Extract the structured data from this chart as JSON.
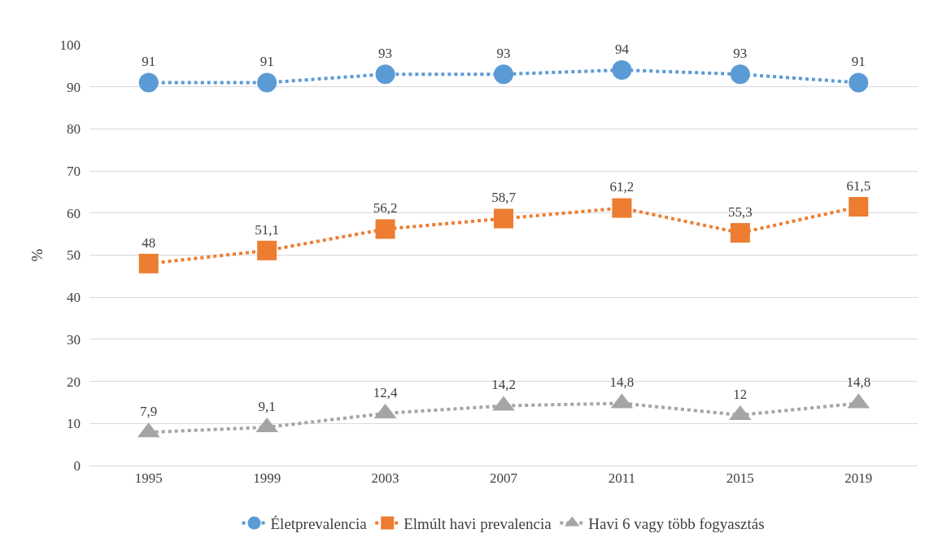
{
  "chart_data": {
    "type": "line",
    "ylabel": "%",
    "categories": [
      "1995",
      "1999",
      "2003",
      "2007",
      "2011",
      "2015",
      "2019"
    ],
    "series": [
      {
        "name": "Életprevalencia",
        "color": "#5b9bd5",
        "marker": "circle",
        "values": [
          91,
          91,
          93,
          93,
          94,
          93,
          91
        ],
        "value_labels": [
          "91",
          "91",
          "93",
          "93",
          "94",
          "93",
          "91"
        ]
      },
      {
        "name": "Elmúlt havi prevalencia",
        "color": "#ed7d31",
        "marker": "square",
        "values": [
          48,
          51.1,
          56.2,
          58.7,
          61.2,
          55.3,
          61.5
        ],
        "value_labels": [
          "48",
          "51,1",
          "56,2",
          "58,7",
          "61,2",
          "55,3",
          "61,5"
        ]
      },
      {
        "name": "Havi 6 vagy több fogyasztás",
        "color": "#a5a5a5",
        "marker": "triangle",
        "values": [
          7.9,
          9.1,
          12.4,
          14.2,
          14.8,
          12,
          14.8
        ],
        "value_labels": [
          "7,9",
          "9,1",
          "12,4",
          "14,2",
          "14,8",
          "12",
          "14,8"
        ]
      }
    ],
    "ylim": [
      0,
      100
    ],
    "yticks": [
      0,
      10,
      20,
      30,
      40,
      50,
      60,
      70,
      80,
      90,
      100
    ],
    "grid": "y",
    "legend": "bottom",
    "line_style": "dotted"
  }
}
